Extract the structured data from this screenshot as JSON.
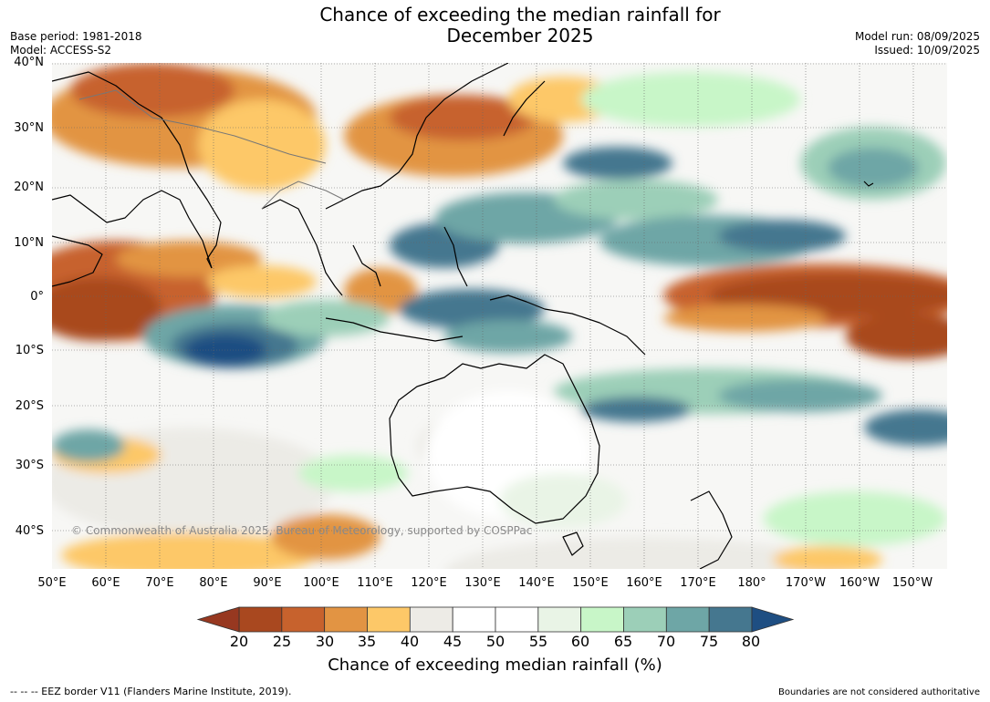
{
  "title_line1": "Chance of exceeding the median rainfall for",
  "title_line2": "December 2025",
  "meta": {
    "base_period": "Base period: 1981-2018",
    "model": "Model: ACCESS-S2",
    "model_run": "Model run: 08/09/2025",
    "issued": "Issued: 10/09/2025"
  },
  "lat_labels": [
    "40°N",
    "30°N",
    "20°N",
    "10°N",
    "0°",
    "10°S",
    "20°S",
    "30°S",
    "40°S"
  ],
  "lon_labels": [
    "50°E",
    "60°E",
    "70°E",
    "80°E",
    "90°E",
    "100°E",
    "110°E",
    "120°E",
    "130°E",
    "140°E",
    "150°E",
    "160°E",
    "170°E",
    "180°",
    "170°W",
    "160°W",
    "150°W"
  ],
  "copyright": "© Commonwealth of Australia 2025, Bureau of Meteorology, supported by COSPPac",
  "colorbar": {
    "ticks": [
      "20",
      "25",
      "30",
      "35",
      "40",
      "45",
      "50",
      "55",
      "60",
      "65",
      "70",
      "75",
      "80"
    ],
    "colors": [
      "#a9481f",
      "#c7622d",
      "#e29443",
      "#fdc868",
      "#edebe6",
      "#ffffff",
      "#ffffff",
      "#e9f4e6",
      "#c8f6c8",
      "#9ccfb8",
      "#6ea6a6",
      "#45778f"
    ],
    "low_color": "#973820",
    "high_color": "#1e4e82",
    "title": "Chance of exceeding median rainfall (%)"
  },
  "footer": {
    "eez_note": "--  --  -- EEZ border V11 (Flanders Marine Institute, 2019).",
    "boundaries_note": "Boundaries are not considered authoritative"
  }
}
